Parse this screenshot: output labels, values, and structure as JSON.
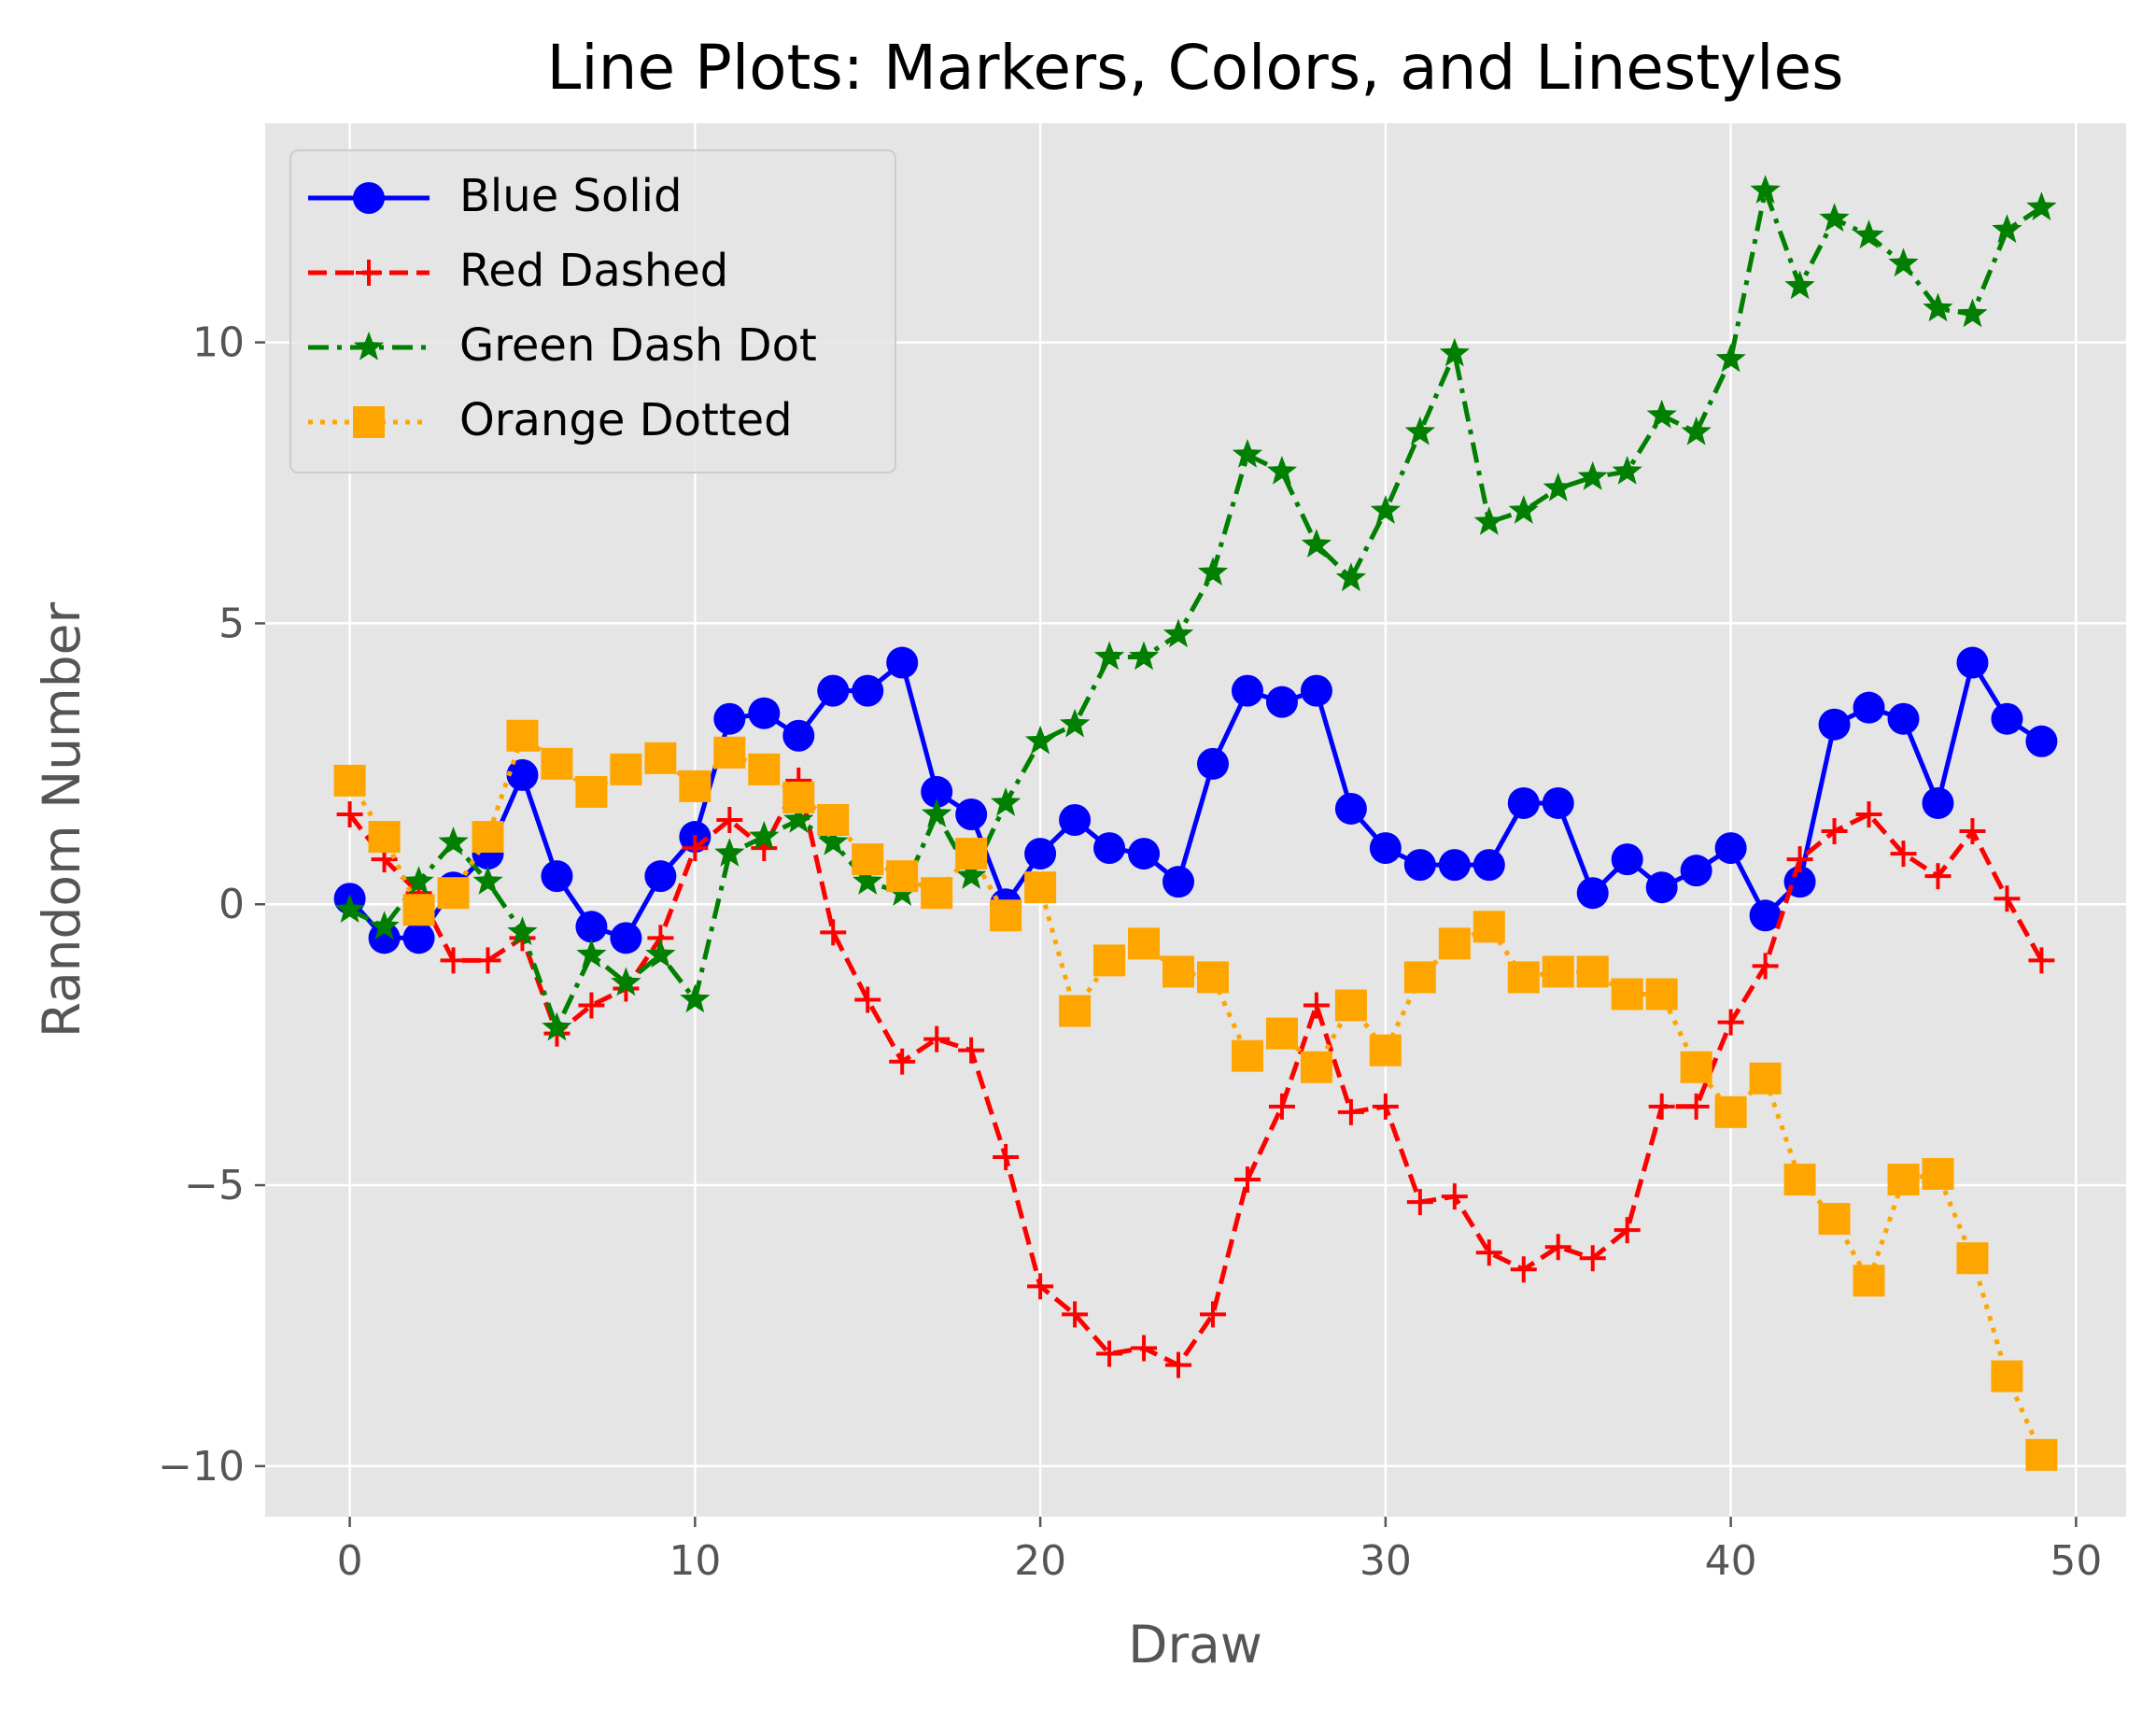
{
  "chart_data": {
    "type": "line",
    "title": "Line Plots: Markers, Colors, and Linestyles",
    "xlabel": "Draw",
    "ylabel": "Random Number",
    "xlim": [
      -2.45,
      51.45
    ],
    "ylim": [
      -10.9,
      13.9
    ],
    "xticks": [
      0,
      10,
      20,
      30,
      40,
      50
    ],
    "xtick_labels": [
      "0",
      "10",
      "20",
      "30",
      "40",
      "50"
    ],
    "yticks": [
      -10,
      -5,
      0,
      5,
      10
    ],
    "ytick_labels": [
      "−10",
      "−5",
      "0",
      "5",
      "10"
    ],
    "grid": true,
    "legend_position": "top-left",
    "plot_background": "#e5e5e5",
    "x": [
      0,
      1,
      2,
      3,
      4,
      5,
      6,
      7,
      8,
      9,
      10,
      11,
      12,
      13,
      14,
      15,
      16,
      17,
      18,
      19,
      20,
      21,
      22,
      23,
      24,
      25,
      26,
      27,
      28,
      29,
      30,
      31,
      32,
      33,
      34,
      35,
      36,
      37,
      38,
      39,
      40,
      41,
      42,
      43,
      44,
      45,
      46,
      47,
      48,
      49
    ],
    "series": [
      {
        "name": "Blue Solid",
        "color": "#0000ff",
        "linestyle": "solid",
        "marker": "circle",
        "values": [
          0.1,
          -0.6,
          -0.6,
          0.3,
          0.9,
          2.3,
          0.5,
          -0.4,
          -0.6,
          0.5,
          1.2,
          3.3,
          3.4,
          3.0,
          3.8,
          3.8,
          4.3,
          2.0,
          1.6,
          0.0,
          0.9,
          1.5,
          1.0,
          0.9,
          0.4,
          2.5,
          3.8,
          3.6,
          3.8,
          1.7,
          1.0,
          0.7,
          0.7,
          0.7,
          1.8,
          1.8,
          0.2,
          0.8,
          0.3,
          0.6,
          1.0,
          -0.2,
          0.4,
          3.2,
          3.5,
          3.3,
          1.8,
          4.3,
          3.3,
          2.9
        ]
      },
      {
        "name": "Red Dashed",
        "color": "#ff0000",
        "linestyle": "dashed",
        "marker": "plus",
        "values": [
          1.6,
          0.8,
          0.2,
          -1.0,
          -1.0,
          -0.6,
          -2.3,
          -1.8,
          -1.5,
          -0.6,
          1.0,
          1.5,
          1.0,
          2.2,
          -0.5,
          -1.7,
          -2.8,
          -2.4,
          -2.6,
          -4.5,
          -6.8,
          -7.3,
          -8.0,
          -7.9,
          -8.2,
          -7.3,
          -4.9,
          -3.6,
          -1.8,
          -3.7,
          -3.6,
          -5.3,
          -5.2,
          -6.2,
          -6.5,
          -6.1,
          -6.3,
          -5.8,
          -3.6,
          -3.6,
          -2.1,
          -1.1,
          0.8,
          1.3,
          1.6,
          0.9,
          0.5,
          1.3,
          0.1,
          -1.0
        ]
      },
      {
        "name": "Green Dash Dot",
        "color": "#007f00",
        "linestyle": "dashdot",
        "marker": "star",
        "values": [
          -0.1,
          -0.4,
          0.4,
          1.1,
          0.4,
          -0.5,
          -2.2,
          -0.9,
          -1.4,
          -0.9,
          -1.7,
          0.9,
          1.2,
          1.5,
          1.1,
          0.4,
          0.2,
          1.6,
          0.5,
          1.8,
          2.9,
          3.2,
          4.4,
          4.4,
          4.8,
          5.9,
          8.0,
          7.7,
          6.4,
          5.8,
          7.0,
          8.4,
          9.8,
          6.8,
          7.0,
          7.4,
          7.6,
          7.7,
          8.7,
          8.4,
          9.7,
          12.7,
          11.0,
          12.2,
          11.9,
          11.4,
          10.6,
          10.5,
          12.0,
          12.4
        ]
      },
      {
        "name": "Orange Dotted",
        "color": "#ffa500",
        "linestyle": "dotted",
        "marker": "square",
        "values": [
          2.2,
          1.2,
          -0.1,
          0.2,
          1.2,
          3.0,
          2.5,
          2.0,
          2.4,
          2.6,
          2.1,
          2.7,
          2.4,
          1.9,
          1.5,
          0.8,
          0.5,
          0.2,
          0.9,
          -0.2,
          0.3,
          -1.9,
          -1.0,
          -0.7,
          -1.2,
          -1.3,
          -2.7,
          -2.3,
          -2.9,
          -1.8,
          -2.6,
          -1.3,
          -0.7,
          -0.4,
          -1.3,
          -1.2,
          -1.2,
          -1.6,
          -1.6,
          -2.9,
          -3.7,
          -3.1,
          -4.9,
          -5.6,
          -6.7,
          -4.9,
          -4.8,
          -6.3,
          -8.4,
          -9.8
        ]
      }
    ]
  }
}
